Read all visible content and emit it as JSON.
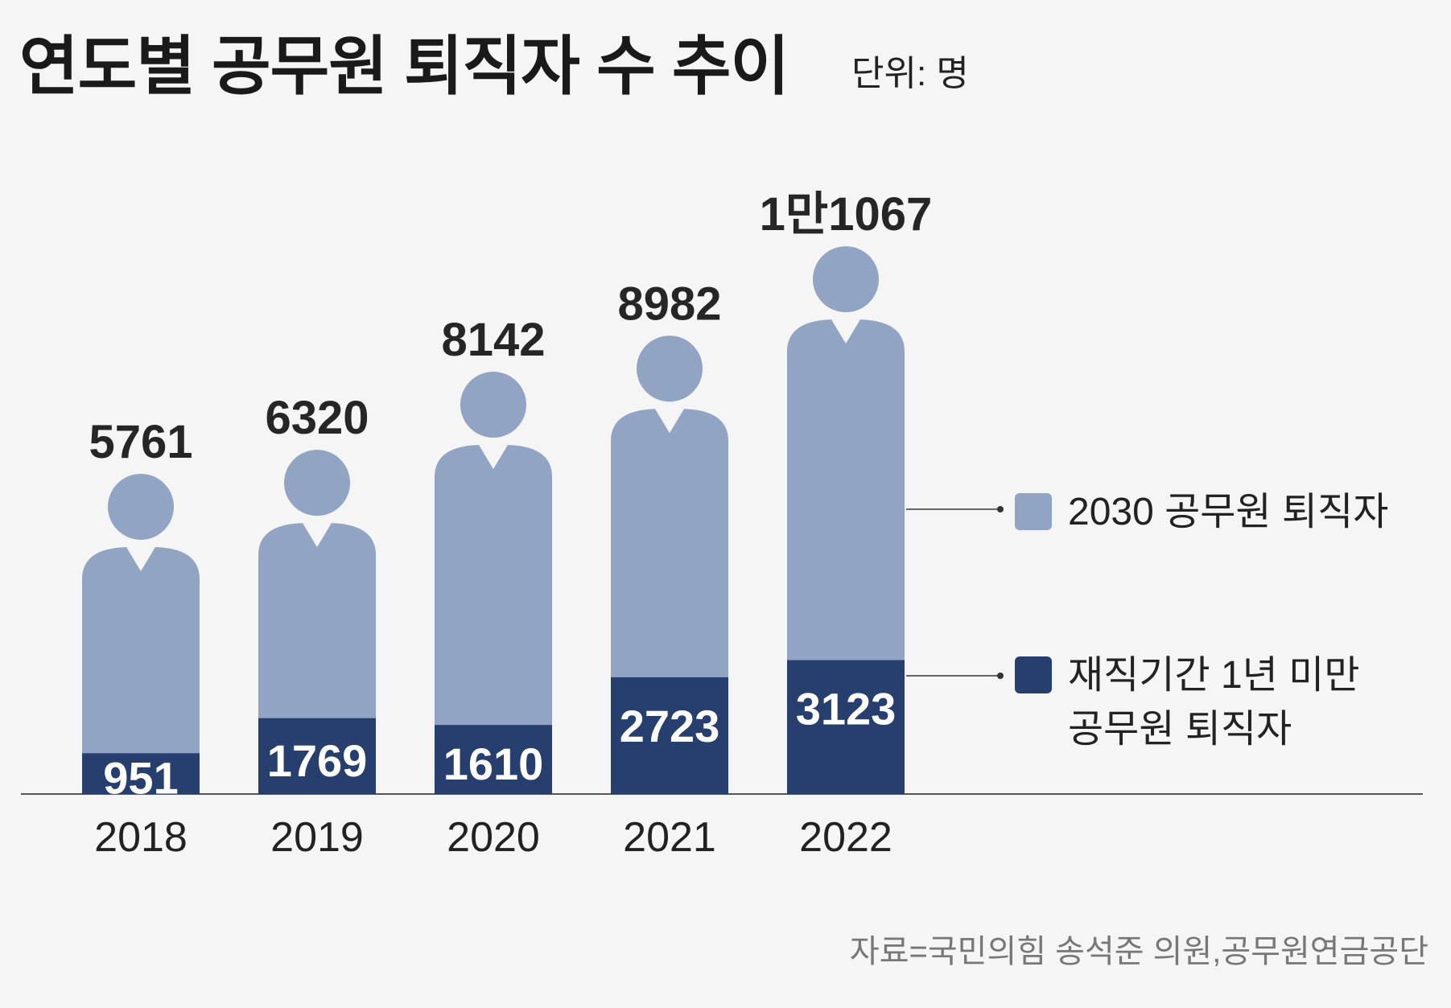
{
  "title": "연도별 공무원 퇴직자 수 추이",
  "unit": "단위: 명",
  "source": "자료=국민의힘 송석준 의원,공무원연금공단",
  "colors": {
    "total": "#91a4c4",
    "under_one_year": "#273f6e",
    "text_dark": "#262626",
    "background": "#f5f5f5"
  },
  "chart_data": {
    "type": "bar",
    "categories": [
      "2018",
      "2019",
      "2020",
      "2021",
      "2022"
    ],
    "series": [
      {
        "name": "2030 공무원 퇴직자",
        "values": [
          5761,
          6320,
          8142,
          8982,
          11067
        ],
        "labels": [
          "5761",
          "6320",
          "8142",
          "8982",
          "1만1067"
        ]
      },
      {
        "name": "재직기간 1년 미만 공무원 퇴직자",
        "values": [
          951,
          1769,
          1610,
          2723,
          3123
        ],
        "labels": [
          "951",
          "1769",
          "1610",
          "2723",
          "3123"
        ]
      }
    ],
    "legend": [
      {
        "label": "2030 공무원 퇴직자",
        "color": "#91a4c4"
      },
      {
        "label": "재직기간 1년 미만",
        "label2": "공무원 퇴직자",
        "color": "#273f6e"
      }
    ],
    "legend_position": "right",
    "grid": false
  }
}
